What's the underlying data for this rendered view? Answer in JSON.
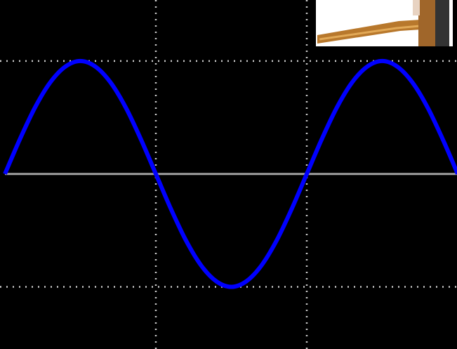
{
  "chart_data": {
    "type": "line",
    "x": [
      0,
      0.05,
      0.1,
      0.15,
      0.2,
      0.25,
      0.3,
      0.35,
      0.4,
      0.45,
      0.5,
      0.55,
      0.6,
      0.65,
      0.7,
      0.75,
      0.8,
      0.85,
      0.9,
      0.95,
      1,
      1.05,
      1.1,
      1.15,
      1.2,
      1.25,
      1.3,
      1.35,
      1.4,
      1.45,
      1.5
    ],
    "series": [
      {
        "color": "#0000ff",
        "values": [
          0,
          0.31,
          0.59,
          0.81,
          0.95,
          1,
          0.95,
          0.81,
          0.59,
          0.31,
          0,
          -0.31,
          -0.59,
          -0.81,
          -0.95,
          -1,
          -0.95,
          -0.81,
          -0.59,
          -0.31,
          0,
          0.31,
          0.59,
          0.81,
          0.95,
          1,
          0.95,
          0.81,
          0.59,
          0.31,
          0
        ]
      }
    ],
    "xlim": [
      0,
      1.5
    ],
    "xticks": [
      0.5,
      1
    ],
    "ylim": [
      -1.55,
      1.54
    ],
    "yticks": [
      -1,
      1
    ],
    "grid": true
  }
}
